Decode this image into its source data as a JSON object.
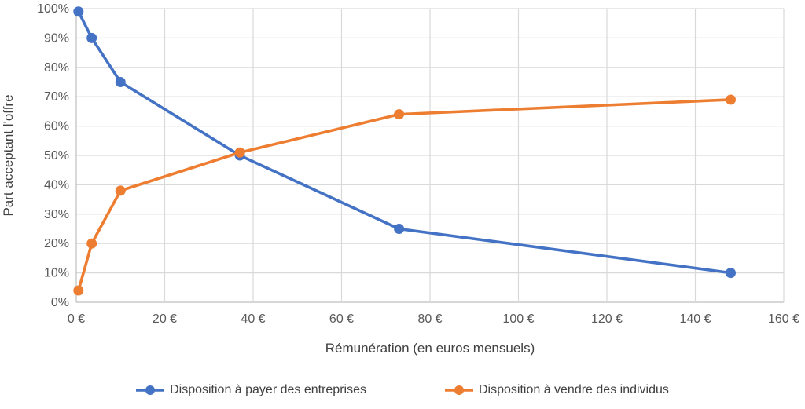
{
  "chart_data": {
    "type": "line",
    "title": "",
    "xlabel": "Rémunération (en euros mensuels)",
    "ylabel": "Part acceptant l'offre",
    "xlim": [
      0,
      160
    ],
    "ylim": [
      0,
      100
    ],
    "grid": true,
    "legend_position": "bottom",
    "x_ticks": [
      {
        "value": 0,
        "label": "0 €"
      },
      {
        "value": 20,
        "label": "20 €"
      },
      {
        "value": 40,
        "label": "40 €"
      },
      {
        "value": 60,
        "label": "60 €"
      },
      {
        "value": 80,
        "label": "80 €"
      },
      {
        "value": 100,
        "label": "100 €"
      },
      {
        "value": 120,
        "label": "120 €"
      },
      {
        "value": 140,
        "label": "140 €"
      },
      {
        "value": 160,
        "label": "160 €"
      }
    ],
    "y_ticks": [
      {
        "value": 0,
        "label": "0%"
      },
      {
        "value": 10,
        "label": "10%"
      },
      {
        "value": 20,
        "label": "20%"
      },
      {
        "value": 30,
        "label": "30%"
      },
      {
        "value": 40,
        "label": "40%"
      },
      {
        "value": 50,
        "label": "50%"
      },
      {
        "value": 60,
        "label": "60%"
      },
      {
        "value": 70,
        "label": "70%"
      },
      {
        "value": 80,
        "label": "80%"
      },
      {
        "value": 90,
        "label": "90%"
      },
      {
        "value": 100,
        "label": "100%"
      }
    ],
    "x": [
      0.5,
      3.5,
      10,
      37,
      73,
      148
    ],
    "series": [
      {
        "name": "Disposition à payer des entreprises",
        "color": "#4472C4",
        "values": [
          99,
          90,
          75,
          50,
          25,
          10
        ]
      },
      {
        "name": "Disposition à vendre des individus",
        "color": "#ED7D31",
        "values": [
          4,
          20,
          38,
          51,
          64,
          69
        ]
      }
    ],
    "colors": {
      "gridline": "#D9D9D9",
      "axis": "#BFBFBF",
      "tick_text": "#595959",
      "title_text": "#404040"
    }
  }
}
